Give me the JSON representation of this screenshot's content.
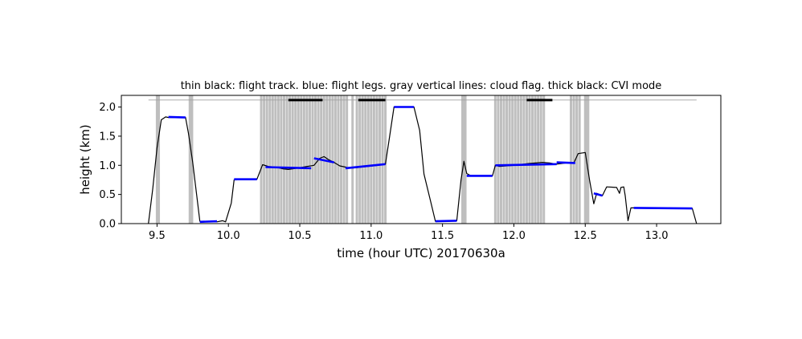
{
  "chart_data": {
    "type": "line",
    "title": "thin black: flight track. blue: flight legs. gray vertical lines: cloud flag. thick black: CVI mode",
    "xlabel": "time (hour UTC) 20170630a",
    "ylabel": "height (km)",
    "xlim": [
      9.25,
      13.45
    ],
    "ylim": [
      0.0,
      2.2
    ],
    "xticks": [
      9.5,
      10.0,
      10.5,
      11.0,
      11.5,
      12.0,
      12.5,
      13.0
    ],
    "xtick_labels": [
      "9.5",
      "10.0",
      "10.5",
      "11.0",
      "11.5",
      "12.0",
      "12.5",
      "13.0"
    ],
    "yticks": [
      0.0,
      0.5,
      1.0,
      1.5,
      2.0
    ],
    "ytick_labels": [
      "0.0",
      "0.5",
      "1.0",
      "1.5",
      "2.0"
    ],
    "grid": false,
    "colors": {
      "track": "#000000",
      "legs": "#0000ff",
      "cloud": "#bfbfbf",
      "reference": "#a0a0a0",
      "cvi": "#000000"
    },
    "series": [
      {
        "role": "flight track",
        "x": [
          9.44,
          9.47,
          9.5,
          9.53,
          9.56,
          9.58,
          9.7,
          9.72,
          9.75,
          9.78,
          9.8,
          9.92,
          9.96,
          9.98,
          10.02,
          10.04,
          10.2,
          10.24,
          10.28,
          10.33,
          10.38,
          10.42,
          10.48,
          10.55,
          10.6,
          10.64,
          10.67,
          10.7,
          10.74,
          10.78,
          10.82,
          10.85,
          10.9,
          11.05,
          11.1,
          11.13,
          11.16,
          11.3,
          11.34,
          11.37,
          11.42,
          11.45,
          11.48,
          11.6,
          11.63,
          11.65,
          11.67,
          11.7,
          11.85,
          11.87,
          11.9,
          12.0,
          12.1,
          12.2,
          12.25,
          12.3,
          12.4,
          12.42,
          12.45,
          12.5,
          12.53,
          12.56,
          12.58,
          12.62,
          12.65,
          12.72,
          12.74,
          12.75,
          12.77,
          12.78,
          12.8,
          12.82,
          12.84,
          13.0,
          13.1,
          13.25,
          13.28
        ],
        "y": [
          0.0,
          0.6,
          1.3,
          1.78,
          1.83,
          1.82,
          1.82,
          1.55,
          1.05,
          0.45,
          0.04,
          0.03,
          0.05,
          0.03,
          0.35,
          0.75,
          0.76,
          1.01,
          0.98,
          0.97,
          0.94,
          0.93,
          0.95,
          0.98,
          1.0,
          1.12,
          1.15,
          1.1,
          1.05,
          0.99,
          0.97,
          0.95,
          0.96,
          1.0,
          1.02,
          1.5,
          2.0,
          2.0,
          1.6,
          0.85,
          0.35,
          0.04,
          0.04,
          0.05,
          0.75,
          1.07,
          0.86,
          0.82,
          0.82,
          1.0,
          0.98,
          1.0,
          1.03,
          1.05,
          1.04,
          1.02,
          1.05,
          1.04,
          1.2,
          1.22,
          0.75,
          0.34,
          0.52,
          0.48,
          0.63,
          0.62,
          0.52,
          0.62,
          0.63,
          0.48,
          0.05,
          0.27,
          0.27,
          0.27,
          0.26,
          0.26,
          0.0
        ]
      },
      {
        "role": "flight legs",
        "segments": [
          {
            "x": [
              9.58,
              9.7
            ],
            "y": [
              1.83,
              1.82
            ]
          },
          {
            "x": [
              9.8,
              9.92
            ],
            "y": [
              0.03,
              0.04
            ]
          },
          {
            "x": [
              10.04,
              10.2
            ],
            "y": [
              0.76,
              0.76
            ]
          },
          {
            "x": [
              10.26,
              10.58
            ],
            "y": [
              0.97,
              0.95
            ]
          },
          {
            "x": [
              10.6,
              10.74
            ],
            "y": [
              1.12,
              1.05
            ]
          },
          {
            "x": [
              10.82,
              11.1
            ],
            "y": [
              0.95,
              1.02
            ]
          },
          {
            "x": [
              11.16,
              11.3
            ],
            "y": [
              2.0,
              2.0
            ]
          },
          {
            "x": [
              11.45,
              11.6
            ],
            "y": [
              0.04,
              0.05
            ]
          },
          {
            "x": [
              11.67,
              11.85
            ],
            "y": [
              0.82,
              0.82
            ]
          },
          {
            "x": [
              11.87,
              12.3
            ],
            "y": [
              1.0,
              1.02
            ]
          },
          {
            "x": [
              12.3,
              12.43
            ],
            "y": [
              1.05,
              1.04
            ]
          },
          {
            "x": [
              12.56,
              12.62
            ],
            "y": [
              0.52,
              0.48
            ]
          },
          {
            "x": [
              12.84,
              13.25
            ],
            "y": [
              0.27,
              0.26
            ]
          }
        ]
      }
    ],
    "cloud_flag_x": [
      9.5,
      9.508,
      9.512,
      9.73,
      9.738,
      9.745,
      10.23,
      10.25,
      10.27,
      10.29,
      10.31,
      10.33,
      10.35,
      10.37,
      10.39,
      10.41,
      10.43,
      10.45,
      10.47,
      10.49,
      10.51,
      10.53,
      10.55,
      10.57,
      10.59,
      10.61,
      10.63,
      10.65,
      10.67,
      10.69,
      10.71,
      10.73,
      10.75,
      10.77,
      10.79,
      10.81,
      10.83,
      10.87,
      10.9,
      10.92,
      10.94,
      10.96,
      10.98,
      11.0,
      11.02,
      11.04,
      11.06,
      11.08,
      11.1,
      11.64,
      11.65,
      11.66,
      11.87,
      11.89,
      11.91,
      11.93,
      11.95,
      11.97,
      11.99,
      12.01,
      12.03,
      12.05,
      12.07,
      12.09,
      12.11,
      12.13,
      12.15,
      12.17,
      12.19,
      12.21,
      12.4,
      12.42,
      12.44,
      12.46,
      12.5,
      12.51,
      12.52
    ],
    "cvi_segments": [
      [
        10.42,
        10.66
      ],
      [
        10.91,
        11.1
      ],
      [
        12.09,
        12.27
      ]
    ],
    "reference_line_y": 2.12
  }
}
